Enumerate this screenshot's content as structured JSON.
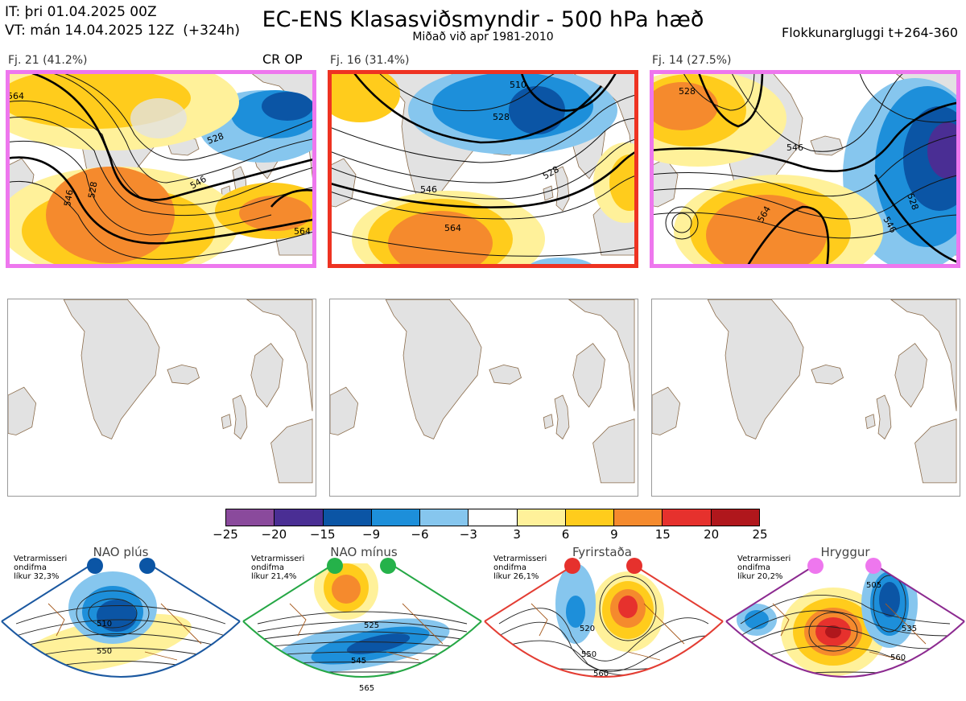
{
  "header": {
    "init_time": "IT: þri 01.04.2025 00Z",
    "valid_time": "VT: mán 14.04.2025 12Z  (+324h)",
    "title": "EC-ENS Klasasviðsmyndir - 500 hPa hæð",
    "subtitle": "Miðað við apr 1981-2010",
    "window": "Flokkunargluggi t+264-360"
  },
  "clusters": [
    {
      "label": "Fj. 21 (41.2%)",
      "frame_color": "#ee77ee",
      "badge": "CR OP",
      "contours": [
        "528",
        "546",
        "564",
        "528",
        "546",
        "564"
      ]
    },
    {
      "label": "Fj. 16 (31.4%)",
      "frame_color": "#ee3322",
      "contours": [
        "510",
        "528",
        "546",
        "564",
        "528"
      ]
    },
    {
      "label": "Fj. 14 (27.5%)",
      "frame_color": "#ee77ee",
      "contours": [
        "528",
        "546",
        "564",
        "546",
        "528"
      ]
    }
  ],
  "colorbar": {
    "ticks": [
      "−25",
      "−20",
      "−15",
      "−9",
      "−6",
      "−3",
      "3",
      "6",
      "9",
      "15",
      "20",
      "25"
    ],
    "colors": [
      "#8a4a9c",
      "#4a2e94",
      "#0b55a5",
      "#1d8fda",
      "#86c6ee",
      "#ffffff",
      "#fff19a",
      "#ffcc1c",
      "#f58a2d",
      "#e6312d",
      "#b0171c"
    ]
  },
  "regimes": [
    {
      "name": "NAO plús",
      "dot_color": "#0b55a5",
      "frame_color": "#1b58a0",
      "info": "Vetrarmisseri\nondifma\nlíkur 32,3%",
      "contours": [
        "510",
        "550"
      ]
    },
    {
      "name": "NAO mínus",
      "dot_color": "#25b24a",
      "frame_color": "#25a745",
      "info": "Vetrarmisseri\nondifma\nlíkur 21,4%",
      "contours": [
        "525",
        "545",
        "565"
      ]
    },
    {
      "name": "Fyrirstaða",
      "dot_color": "#e6312d",
      "frame_color": "#e33d33",
      "info": "Vetrarmisseri\nondifma\nlíkur 26,1%",
      "contours": [
        "520",
        "550",
        "560"
      ]
    },
    {
      "name": "Hryggur",
      "dot_color": "#ee77ee",
      "frame_color": "#8c2a90",
      "info": "Vetrarmisseri\nondifma\nlíkur 20,2%",
      "contours": [
        "505",
        "535",
        "560"
      ]
    }
  ]
}
